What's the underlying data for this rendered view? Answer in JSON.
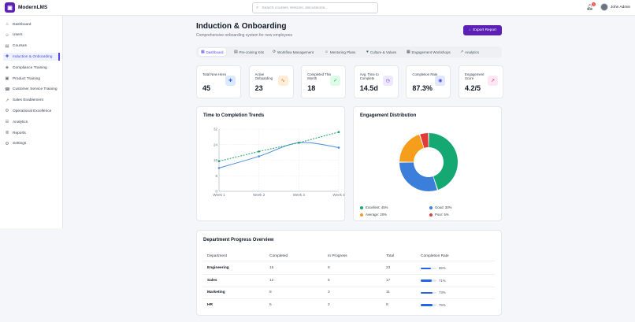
{
  "app": {
    "name": "ModernLMS",
    "logo_glyph": "▣"
  },
  "search": {
    "placeholder": "Search courses, lessons, discussions..."
  },
  "notifications": {
    "count": "3"
  },
  "user": {
    "name": "John Admin"
  },
  "sidebar": {
    "items": [
      {
        "label": "Dashboard",
        "icon": "home-icon",
        "glyph": "⌂"
      },
      {
        "label": "Users",
        "icon": "users-icon",
        "glyph": "☺"
      },
      {
        "label": "Courses",
        "icon": "book-icon",
        "glyph": "▤"
      },
      {
        "label": "Induction & Onboarding",
        "icon": "user-plus-icon",
        "glyph": "✚",
        "active": true
      },
      {
        "label": "Compliance Training",
        "icon": "shield-icon",
        "glyph": "◈"
      },
      {
        "label": "Product Training",
        "icon": "box-icon",
        "glyph": "▣"
      },
      {
        "label": "Customer Service Training",
        "icon": "headset-icon",
        "glyph": "☎"
      },
      {
        "label": "Sales Enablement",
        "icon": "trending-up-icon",
        "glyph": "↗"
      },
      {
        "label": "Operational Excellence",
        "icon": "gear-icon",
        "glyph": "⚙"
      },
      {
        "label": "Analytics",
        "icon": "bar-chart-icon",
        "glyph": "☰"
      },
      {
        "label": "Reports",
        "icon": "file-icon",
        "glyph": "≣"
      },
      {
        "label": "Settings",
        "icon": "settings-icon",
        "glyph": "⚙"
      }
    ]
  },
  "page": {
    "title": "Induction & Onboarding",
    "subtitle": "Comprehensive onboarding system for new employees",
    "export_label": "Export Report"
  },
  "tabs": [
    {
      "label": "Dashboard",
      "glyph": "▦",
      "active": true
    },
    {
      "label": "Pre-Joining Kits",
      "glyph": "▤"
    },
    {
      "label": "Workflow Management",
      "glyph": "⟳"
    },
    {
      "label": "Mentoring Plans",
      "glyph": "☺"
    },
    {
      "label": "Culture & Values",
      "glyph": "♥"
    },
    {
      "label": "Engagement Workshops",
      "glyph": "▦"
    },
    {
      "label": "Analytics",
      "glyph": "↗"
    }
  ],
  "stats": [
    {
      "label": "Total New Hires",
      "value": "45",
      "icon": "user-plus-icon",
      "glyph": "✚",
      "color": "#2563eb",
      "bg": "#dbeafe"
    },
    {
      "label": "Active Onboarding",
      "value": "23",
      "icon": "activity-icon",
      "glyph": "∿",
      "color": "#ea580c",
      "bg": "#ffedd5"
    },
    {
      "label": "Completed This Month",
      "value": "18",
      "icon": "check-circle-icon",
      "glyph": "✓",
      "color": "#16a34a",
      "bg": "#dcfce7"
    },
    {
      "label": "Avg. Time to Complete",
      "value": "14.5d",
      "icon": "clock-icon",
      "glyph": "◷",
      "color": "#7c3aed",
      "bg": "#ede9fe"
    },
    {
      "label": "Completion Rate",
      "value": "87.3%",
      "icon": "target-icon",
      "glyph": "◉",
      "color": "#4f46e5",
      "bg": "#e0e7ff"
    },
    {
      "label": "Engagement Score",
      "value": "4.2/5",
      "icon": "trending-up-icon",
      "glyph": "↗",
      "color": "#db2777",
      "bg": "#fce7f3"
    }
  ],
  "line_chart": {
    "title": "Time to Completion Trends",
    "chart_data": {
      "type": "line",
      "categories": [
        "Week 1",
        "Week 2",
        "Week 3",
        "Week 4"
      ],
      "yticks": [
        "0",
        "8",
        "16",
        "24",
        "32"
      ],
      "ylim": [
        0,
        32
      ],
      "series": [
        {
          "values": [
            12,
            18,
            25,
            22.5
          ],
          "color": "#4a90d9",
          "style": "solid"
        },
        {
          "values": [
            15.5,
            20.5,
            25,
            30.5
          ],
          "color": "#22a06b",
          "style": "dashed"
        }
      ]
    }
  },
  "donut": {
    "title": "Engagement Distribution",
    "chart_data": {
      "type": "pie",
      "slices": [
        {
          "label": "Excellent: 45%",
          "value": 45,
          "color": "#16a873"
        },
        {
          "label": "Good: 30%",
          "value": 30,
          "color": "#3b7fdb"
        },
        {
          "label": "Average: 20%",
          "value": 20,
          "color": "#f59e1b"
        },
        {
          "label": "Poor: 5%",
          "value": 5,
          "color": "#e23a3a"
        }
      ]
    }
  },
  "department_table": {
    "title": "Department Progress Overview",
    "headers": [
      "Department",
      "Completed",
      "In Progress",
      "Total",
      "Completion Rate"
    ],
    "rows": [
      {
        "department": "Engineering",
        "completed": "15",
        "in_progress": "8",
        "total": "23",
        "rate": "65%",
        "rate_value": 65
      },
      {
        "department": "Sales",
        "completed": "12",
        "in_progress": "5",
        "total": "17",
        "rate": "71%",
        "rate_value": 71
      },
      {
        "department": "Marketing",
        "completed": "8",
        "in_progress": "3",
        "total": "11",
        "rate": "73%",
        "rate_value": 73
      },
      {
        "department": "HR",
        "completed": "6",
        "in_progress": "2",
        "total": "8",
        "rate": "75%",
        "rate_value": 75
      }
    ]
  }
}
